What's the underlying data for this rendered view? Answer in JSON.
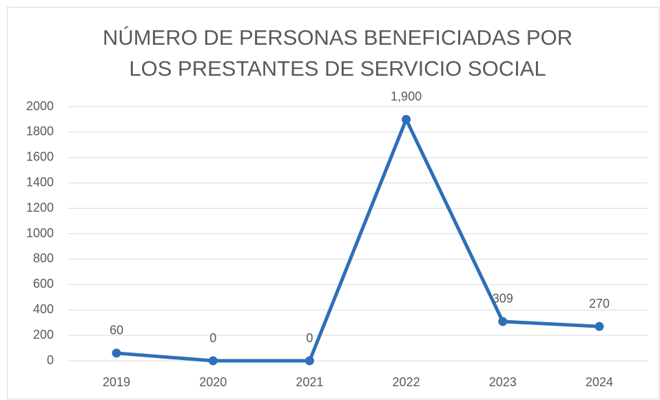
{
  "chart_data": {
    "type": "line",
    "title": [
      "NÚMERO DE PERSONAS BENEFICIADAS POR",
      "LOS PRESTANTES DE SERVICIO SOCIAL"
    ],
    "categories": [
      "2019",
      "2020",
      "2021",
      "2022",
      "2023",
      "2024"
    ],
    "series": [
      {
        "name": null,
        "color": "#2e6fb7",
        "values": [
          60,
          0,
          0,
          1900,
          309,
          270
        ],
        "value_labels": [
          "60",
          "0",
          "0",
          "1,900",
          "309",
          "270"
        ]
      }
    ],
    "ylim": [
      0,
      2000
    ],
    "yticks": [
      0,
      200,
      400,
      600,
      800,
      1000,
      1200,
      1400,
      1600,
      1800,
      2000
    ],
    "grid": true
  }
}
